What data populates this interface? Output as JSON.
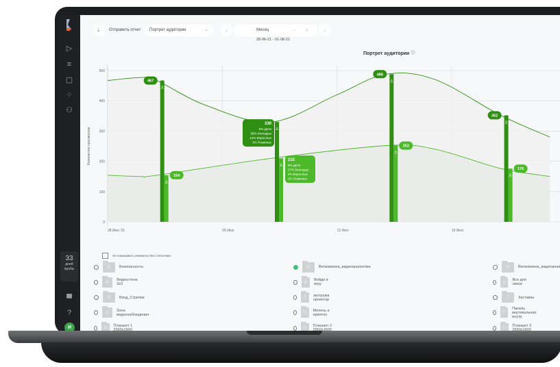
{
  "toolbar": {
    "send_report": "Отправить отчет",
    "report_select": "Портрет аудитории",
    "period": "Месяц",
    "date_range": "28-06-21 - 01-08-21"
  },
  "sidebar": {
    "trial_days": "33",
    "trial_label": "дней пробы",
    "avatar": "И"
  },
  "chart_data": {
    "type": "line",
    "title": "Портрет аудитории",
    "ylabel": "Количество просмотров",
    "ylim": [
      0,
      500
    ],
    "yticks": [
      0,
      100,
      200,
      300,
      400,
      500
    ],
    "xticks": [
      {
        "date": "2021-06-28",
        "label": "28 Июн '21"
      },
      {
        "date": "2021-07-05",
        "label": "05 Июл"
      },
      {
        "date": "2021-07-12",
        "label": "12 Июл"
      },
      {
        "date": "2021-07-19",
        "label": "19 Июл"
      }
    ],
    "grid": true,
    "colors": {
      "upper": "#2f8f12",
      "lower": "#4cb82a"
    },
    "series": [
      {
        "points": [
          [
            "2021-06-28",
            467
          ],
          [
            "2021-06-30",
            477
          ],
          [
            "2021-07-01",
            467
          ],
          [
            "2021-07-04",
            385
          ],
          [
            "2021-07-08",
            330
          ],
          [
            "2021-07-12",
            420
          ],
          [
            "2021-07-15",
            488
          ],
          [
            "2021-07-18",
            470
          ],
          [
            "2021-07-22",
            352
          ],
          [
            "2021-07-25",
            280
          ]
        ]
      },
      {
        "points": [
          [
            "2021-06-28",
            154
          ],
          [
            "2021-06-30",
            150
          ],
          [
            "2021-07-01",
            154
          ],
          [
            "2021-07-08",
            210
          ],
          [
            "2021-07-15",
            252
          ],
          [
            "2021-07-18",
            240
          ],
          [
            "2021-07-22",
            176
          ],
          [
            "2021-07-25",
            150
          ]
        ]
      }
    ],
    "bars": [
      {
        "date": "2021-07-01",
        "upper": 467,
        "lower": 154
      },
      {
        "date": "2021-07-08",
        "upper": 330,
        "lower": 210,
        "upper_breakdown": [
          "8% Дети",
          "38% Молодые",
          "12% Взрослые",
          "3% Пожилые"
        ],
        "lower_breakdown": [
          "9% Дети",
          "27% Молодые",
          "2% Взрослые",
          "2% Пожилые"
        ]
      },
      {
        "date": "2021-07-15",
        "upper": 488,
        "lower": 252
      },
      {
        "date": "2021-07-22",
        "upper": 352,
        "lower": 176
      }
    ]
  },
  "filter": {
    "hide_empty": "Не показывать элементы без статистики"
  },
  "items": [
    [
      {
        "letter": "Б",
        "name": "Безопасность"
      },
      {
        "letter": "В",
        "name": "Велкомзона_видеоаналитика",
        "checked": true
      },
      {
        "letter": "В",
        "name": "Велкомзона_видеоаналитика"
      }
    ],
    [
      {
        "letter": "В",
        "name": "Видеостена 3х3"
      },
      {
        "letter": "В",
        "name": "Войди в игру"
      },
      {
        "letter": "В",
        "name": "Все для связи"
      }
    ],
    [
      {
        "letter": "В",
        "name": "Вход_Стрелки"
      },
      {
        "letter": "З",
        "name": "заглушка проектор"
      },
      {
        "letter": "З",
        "name": "Заставка"
      }
    ],
    [
      {
        "letter": "З",
        "name": "Зона видеонаблюдения"
      },
      {
        "letter": "М",
        "name": "Мелочь а приятно"
      },
      {
        "letter": "П",
        "name": "Панель вертикальная внутр"
      }
    ],
    [
      {
        "letter": "П",
        "name": "Планшет 1 2560х1600"
      },
      {
        "letter": "П",
        "name": "Планшет 2 2560х1600"
      },
      {
        "letter": "П",
        "name": "Планшет 3 2560х1600"
      }
    ]
  ]
}
